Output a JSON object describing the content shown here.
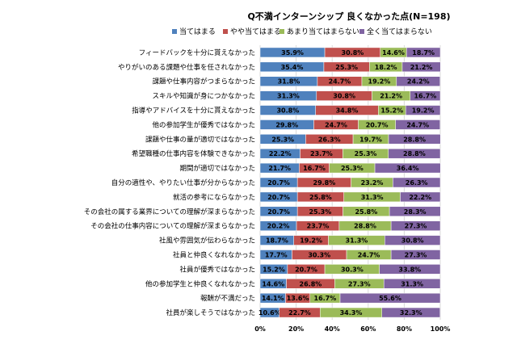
{
  "chart_data": {
    "type": "bar",
    "orientation": "horizontal",
    "stacked": true,
    "title": "Q不満インターンシップ 良くなかった点(N=198)",
    "xlabel": "",
    "ylabel": "",
    "xlim": [
      0,
      100
    ],
    "xticks": [
      "0%",
      "20%",
      "40%",
      "60%",
      "80%",
      "100%"
    ],
    "legend_position": "top",
    "categories": [
      "フィードバックを十分に貰えなかった",
      "やりがいのある課題や仕事を任されなかった",
      "課題や仕事内容がつまらなかった",
      "スキルや知識が身につかなかった",
      "指導やアドバイスを十分に貰えなかった",
      "他の参加学生が優秀ではなかった",
      "課題や仕事の量が適切ではなかった",
      "希望職種の仕事内容を体験できなかった",
      "期間が適切ではなかった",
      "自分の適性や、やりたい仕事が分からなかった",
      "就活の参考にならなかった",
      "その会社の属する業界についての理解が深まらなかった",
      "その会社の仕事内容についての理解が深まらなかった",
      "社風や雰囲気が伝わらなかった",
      "社員と仲良くなれなかった",
      "社員が優秀ではなかった",
      "他の参加学生と仲良くなれなかった",
      "報酬が不満だった",
      "社員が楽しそうではなかった"
    ],
    "series": [
      {
        "name": "当てはまる",
        "color": "#4F81BD",
        "values": [
          35.9,
          35.4,
          31.8,
          31.3,
          30.8,
          29.8,
          25.3,
          22.2,
          21.7,
          20.7,
          20.7,
          20.7,
          20.2,
          18.7,
          17.7,
          15.2,
          14.6,
          14.1,
          10.6
        ]
      },
      {
        "name": "やや当てはまる",
        "color": "#C0504D",
        "values": [
          30.8,
          25.3,
          24.7,
          30.8,
          34.8,
          24.7,
          26.3,
          23.7,
          16.7,
          29.8,
          25.8,
          25.3,
          23.7,
          19.2,
          30.3,
          20.7,
          26.8,
          13.6,
          22.7
        ]
      },
      {
        "name": "あまり当てはまらない",
        "color": "#9BBB59",
        "values": [
          14.6,
          18.2,
          19.2,
          21.2,
          15.2,
          20.7,
          19.7,
          25.3,
          25.3,
          23.2,
          31.3,
          25.8,
          28.8,
          31.3,
          24.7,
          30.3,
          27.3,
          16.7,
          34.3
        ]
      },
      {
        "name": "全く当てはまらない",
        "color": "#8064A2",
        "values": [
          18.7,
          21.2,
          24.2,
          16.7,
          19.2,
          24.7,
          28.8,
          28.8,
          36.4,
          26.3,
          22.2,
          28.3,
          27.3,
          30.8,
          27.3,
          33.8,
          31.3,
          55.6,
          32.3
        ]
      }
    ],
    "value_labels": [
      [
        "35.9%",
        "30.8%",
        "14.6%",
        "18.7%"
      ],
      [
        "35.4%",
        "25.3%",
        "18.2%",
        "21.2%"
      ],
      [
        "31.8%",
        "24.7%",
        "19.2%",
        "24.2%"
      ],
      [
        "31.3%",
        "30.8%",
        "21.2%",
        "16.7%"
      ],
      [
        "30.8%",
        "34.8%",
        "15.2%",
        "19.2%"
      ],
      [
        "29.8%",
        "24.7%",
        "20.7%",
        "24.7%"
      ],
      [
        "25.3%",
        "26.3%",
        "19.7%",
        "28.8%"
      ],
      [
        "22.2%",
        "23.7%",
        "25.3%",
        "28.8%"
      ],
      [
        "21.7%",
        "16.7%",
        "25.3%",
        "36.4%"
      ],
      [
        "20.7%",
        "29.8%",
        "23.2%",
        "26.3%"
      ],
      [
        "20.7%",
        "25.8%",
        "31.3%",
        "22.2%"
      ],
      [
        "20.7%",
        "25.3%",
        "25.8%",
        "28.3%"
      ],
      [
        "20.2%",
        "23.7%",
        "28.8%",
        "27.3%"
      ],
      [
        "18.7%",
        "19.2%",
        "31.3%",
        "30.8%"
      ],
      [
        "17.7%",
        "30.3%",
        "24.7%",
        "27.3%"
      ],
      [
        "15.2%",
        "20.7%",
        "30.3%",
        "33.8%"
      ],
      [
        "14.6%",
        "26.8%",
        "27.3%",
        "31.3%"
      ],
      [
        "14.1%",
        "13.6%",
        "16.7%",
        "55.6%"
      ],
      [
        "10.6%",
        "22.7%",
        "34.3%",
        "32.3%"
      ]
    ]
  }
}
